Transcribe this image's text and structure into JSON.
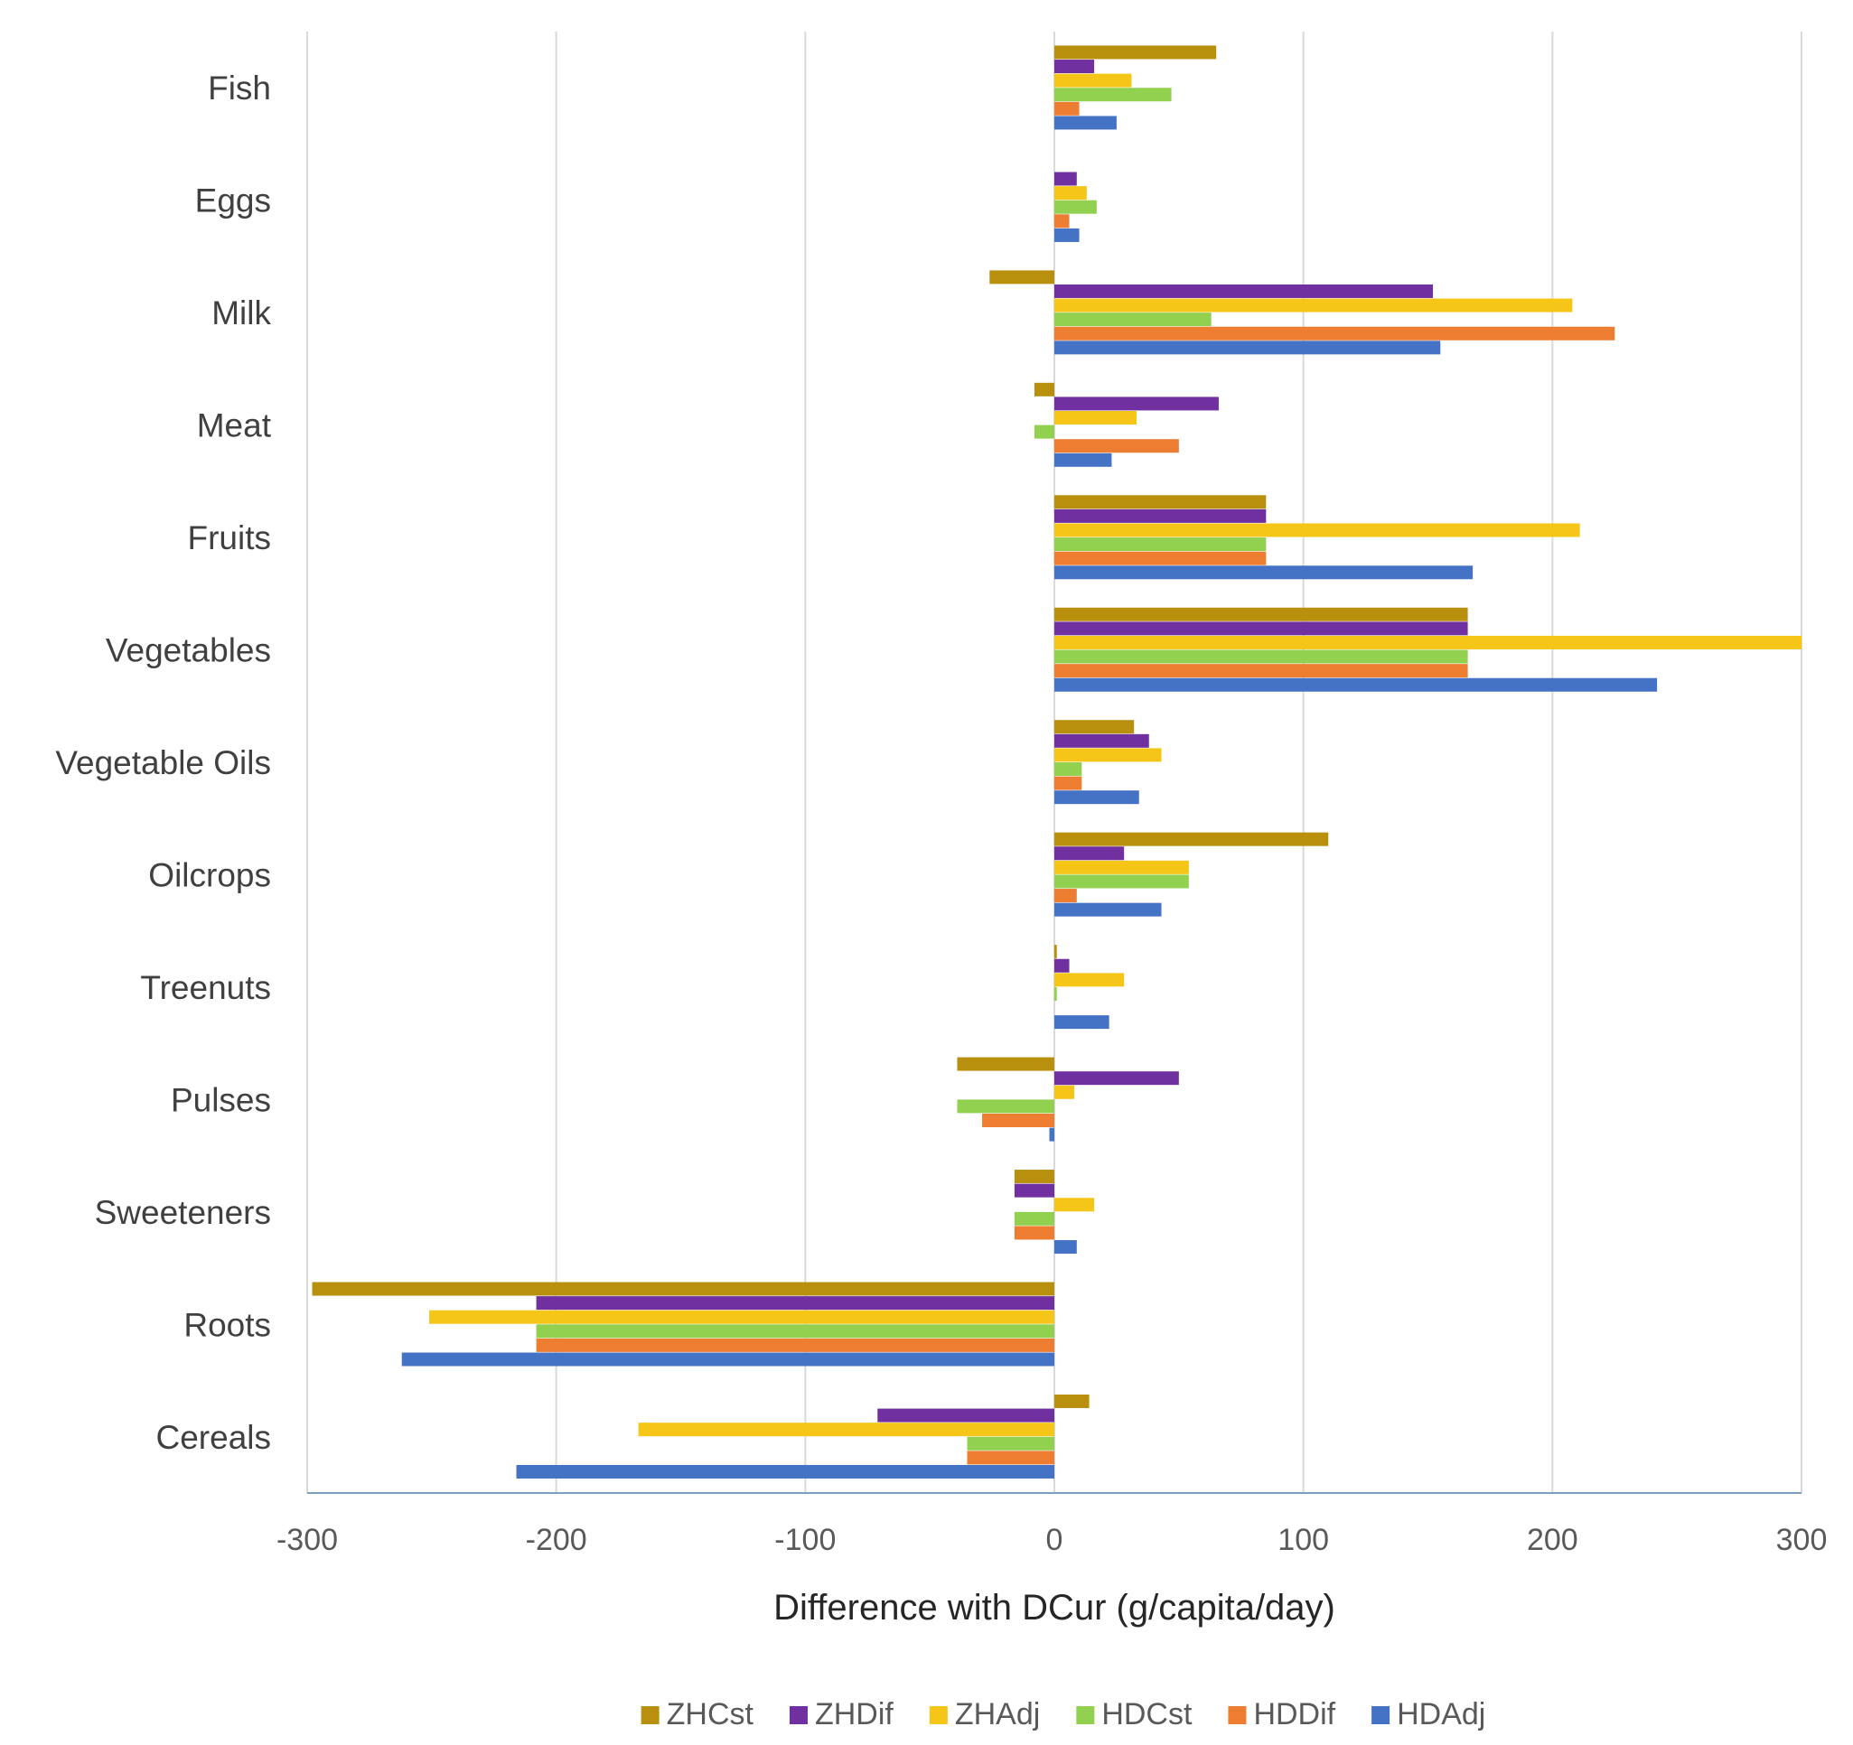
{
  "chart_data": {
    "type": "bar",
    "orientation": "horizontal",
    "title": "",
    "xlabel": "Difference with DCur (g/capita/day)",
    "ylabel": "",
    "xlim": [
      -300,
      300
    ],
    "xticks": [
      -300,
      -200,
      -100,
      0,
      100,
      200,
      300
    ],
    "grid": true,
    "legend_position": "bottom",
    "categories": [
      "Fish",
      "Eggs",
      "Milk",
      "Meat",
      "Fruits",
      "Vegetables",
      "Vegetable Oils",
      "Oilcrops",
      "Treenuts",
      "Pulses",
      "Sweeteners",
      "Roots",
      "Cereals"
    ],
    "series": [
      {
        "name": "ZHCst",
        "color": "#B8900E",
        "values": [
          65,
          0,
          -26,
          -8,
          85,
          166,
          32,
          110,
          1,
          -39,
          -16,
          -298,
          14
        ]
      },
      {
        "name": "ZHDif",
        "color": "#7030A0",
        "values": [
          16,
          9,
          152,
          66,
          85,
          166,
          38,
          28,
          6,
          50,
          -16,
          -208,
          -71
        ]
      },
      {
        "name": "ZHAdj",
        "color": "#F5C518",
        "values": [
          31,
          13,
          208,
          33,
          211,
          300,
          43,
          54,
          28,
          8,
          16,
          -251,
          -167
        ]
      },
      {
        "name": "HDCst",
        "color": "#92D050",
        "values": [
          47,
          17,
          63,
          -8,
          85,
          166,
          11,
          54,
          1,
          -39,
          -16,
          -208,
          -35
        ]
      },
      {
        "name": "HDDif",
        "color": "#ED7D31",
        "values": [
          10,
          6,
          225,
          50,
          85,
          166,
          11,
          9,
          0,
          -29,
          -16,
          -208,
          -35
        ]
      },
      {
        "name": "HDAdj",
        "color": "#4472C4",
        "values": [
          25,
          10,
          155,
          23,
          168,
          242,
          34,
          43,
          22,
          -2,
          9,
          -262,
          -216
        ]
      }
    ]
  }
}
